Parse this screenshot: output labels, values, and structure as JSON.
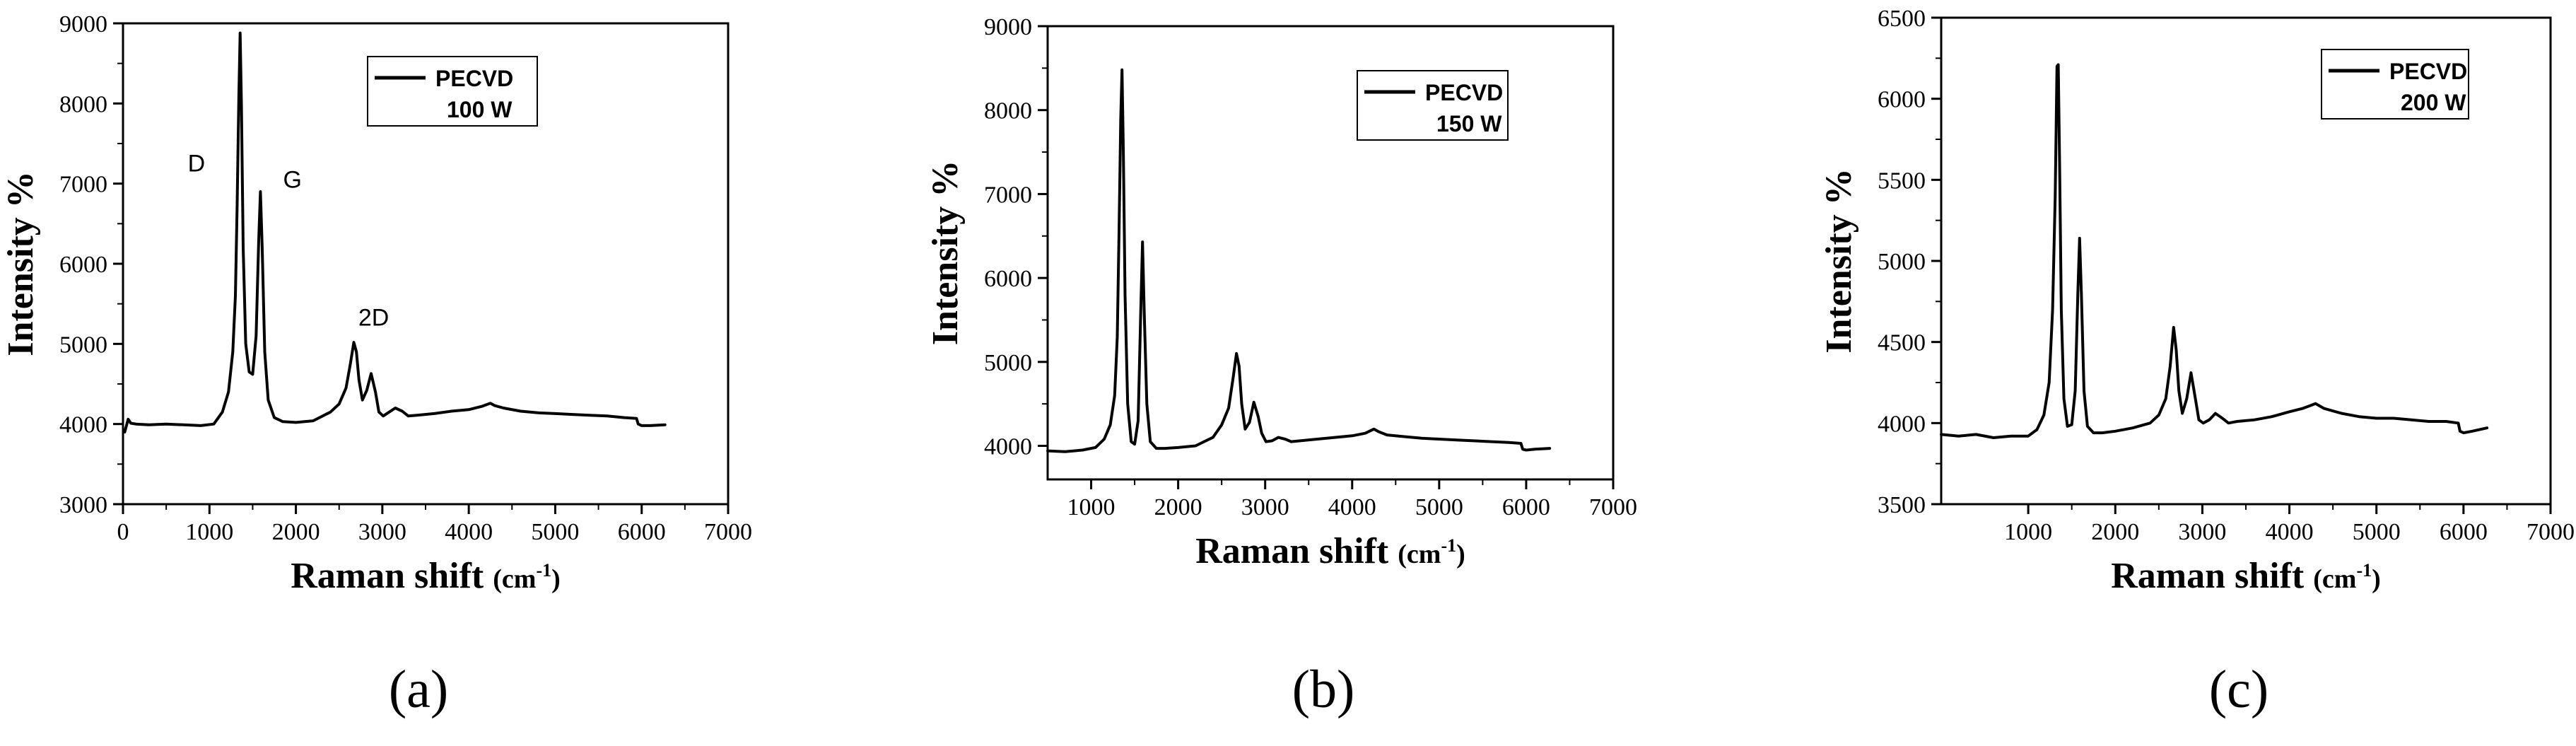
{
  "chart_data": [
    {
      "type": "line",
      "panel_label": "(a)",
      "xlabel": "Raman shift",
      "xlabel_unit_base": "(cm",
      "xlabel_unit_sup": "-1",
      "xlabel_unit_close": ")",
      "ylabel": "Intensity %",
      "xlim": [
        0,
        7000
      ],
      "ylim": [
        3000,
        9000
      ],
      "xticks": [
        0,
        1000,
        2000,
        3000,
        4000,
        5000,
        6000,
        7000
      ],
      "yticks": [
        3000,
        4000,
        5000,
        6000,
        7000,
        8000,
        9000
      ],
      "legend": {
        "name": "PECVD",
        "power": "100 W",
        "position": "top-right"
      },
      "annotations": [
        {
          "text": "D",
          "x": 850,
          "y": 7150
        },
        {
          "text": "G",
          "x": 1960,
          "y": 6950
        },
        {
          "text": "2D",
          "x": 2900,
          "y": 5230
        }
      ],
      "series": [
        {
          "name": "PECVD 100 W",
          "color": "#000000",
          "x": [
            20,
            60,
            90,
            150,
            300,
            500,
            700,
            900,
            1050,
            1150,
            1220,
            1270,
            1300,
            1320,
            1340,
            1355,
            1370,
            1390,
            1420,
            1460,
            1500,
            1540,
            1570,
            1590,
            1610,
            1640,
            1680,
            1750,
            1850,
            2000,
            2200,
            2400,
            2500,
            2580,
            2630,
            2670,
            2700,
            2730,
            2770,
            2820,
            2870,
            2920,
            2960,
            3010,
            3080,
            3150,
            3230,
            3300,
            3400,
            3600,
            3800,
            4000,
            4150,
            4250,
            4300,
            4400,
            4600,
            4800,
            5000,
            5200,
            5400,
            5600,
            5800,
            5940,
            5960,
            6000,
            6100,
            6270
          ],
          "y": [
            3900,
            4060,
            4010,
            4000,
            3990,
            4000,
            3990,
            3980,
            4000,
            4150,
            4400,
            4900,
            5600,
            6700,
            8100,
            8880,
            8000,
            6200,
            5000,
            4650,
            4620,
            5100,
            6300,
            6900,
            6200,
            4900,
            4300,
            4080,
            4030,
            4020,
            4040,
            4150,
            4250,
            4450,
            4750,
            5020,
            4900,
            4550,
            4300,
            4420,
            4630,
            4400,
            4150,
            4100,
            4150,
            4200,
            4160,
            4100,
            4110,
            4130,
            4160,
            4180,
            4220,
            4260,
            4230,
            4200,
            4160,
            4140,
            4130,
            4120,
            4110,
            4100,
            4080,
            4070,
            4000,
            3980,
            3980,
            3990
          ]
        }
      ]
    },
    {
      "type": "line",
      "panel_label": "(b)",
      "xlabel": "Raman shift",
      "xlabel_unit_base": "(cm",
      "xlabel_unit_sup": "-1",
      "xlabel_unit_close": ")",
      "ylabel": "Intensity %",
      "xlim": [
        500,
        7000
      ],
      "ylim": [
        3600,
        9000
      ],
      "xticks": [
        1000,
        2000,
        3000,
        4000,
        5000,
        6000,
        7000
      ],
      "yticks": [
        4000,
        5000,
        6000,
        7000,
        8000,
        9000
      ],
      "legend": {
        "name": "PECVD",
        "power": "150 W",
        "position": "top-right"
      },
      "annotations": [],
      "series": [
        {
          "name": "PECVD 150 W",
          "color": "#000000",
          "x": [
            500,
            700,
            900,
            1050,
            1150,
            1220,
            1270,
            1300,
            1320,
            1340,
            1355,
            1370,
            1390,
            1420,
            1460,
            1500,
            1540,
            1570,
            1590,
            1610,
            1640,
            1680,
            1750,
            1850,
            2000,
            2200,
            2400,
            2500,
            2580,
            2630,
            2670,
            2700,
            2730,
            2770,
            2820,
            2870,
            2920,
            2960,
            3010,
            3080,
            3150,
            3230,
            3300,
            3400,
            3600,
            3800,
            4000,
            4150,
            4250,
            4300,
            4400,
            4600,
            4800,
            5000,
            5200,
            5400,
            5600,
            5800,
            5940,
            5960,
            6000,
            6100,
            6270
          ],
          "y": [
            3940,
            3930,
            3950,
            3980,
            4080,
            4250,
            4600,
            5300,
            6500,
            7900,
            8480,
            7500,
            5800,
            4500,
            4050,
            4020,
            4300,
            5600,
            6430,
            5600,
            4500,
            4050,
            3970,
            3970,
            3980,
            4000,
            4100,
            4250,
            4450,
            4800,
            5100,
            4950,
            4500,
            4200,
            4280,
            4520,
            4350,
            4150,
            4050,
            4060,
            4100,
            4080,
            4050,
            4060,
            4080,
            4100,
            4120,
            4150,
            4200,
            4170,
            4130,
            4110,
            4090,
            4080,
            4070,
            4060,
            4050,
            4040,
            4030,
            3960,
            3950,
            3960,
            3970
          ]
        }
      ]
    },
    {
      "type": "line",
      "panel_label": "(c)",
      "xlabel": "Raman shift",
      "xlabel_unit_base": "(cm",
      "xlabel_unit_sup": "-1",
      "xlabel_unit_close": ")",
      "ylabel": "Intensity %",
      "xlim": [
        0,
        7000
      ],
      "ylim": [
        3500,
        6500
      ],
      "xticks": [
        1000,
        2000,
        3000,
        4000,
        5000,
        6000,
        7000
      ],
      "yticks": [
        3500,
        4000,
        4500,
        5000,
        5500,
        6000,
        6500
      ],
      "legend": {
        "name": "PECVD",
        "power": "200 W",
        "position": "top-right"
      },
      "annotations": [],
      "series": [
        {
          "name": "PECVD 200 W",
          "color": "#000000",
          "x": [
            0,
            200,
            400,
            600,
            800,
            1000,
            1100,
            1180,
            1240,
            1280,
            1310,
            1330,
            1345,
            1360,
            1380,
            1410,
            1450,
            1500,
            1540,
            1570,
            1590,
            1610,
            1640,
            1680,
            1750,
            1850,
            2000,
            2200,
            2400,
            2500,
            2580,
            2630,
            2670,
            2700,
            2730,
            2770,
            2820,
            2870,
            2920,
            2960,
            3010,
            3080,
            3150,
            3230,
            3300,
            3400,
            3600,
            3800,
            4000,
            4150,
            4250,
            4300,
            4400,
            4600,
            4800,
            5000,
            5200,
            5400,
            5600,
            5800,
            5940,
            5960,
            6000,
            6100,
            6270
          ],
          "y": [
            3930,
            3920,
            3930,
            3910,
            3920,
            3920,
            3960,
            4050,
            4250,
            4700,
            5400,
            6200,
            6210,
            5600,
            4700,
            4150,
            3980,
            3990,
            4200,
            4800,
            5140,
            4800,
            4200,
            3980,
            3940,
            3940,
            3950,
            3970,
            4000,
            4050,
            4150,
            4350,
            4590,
            4450,
            4200,
            4060,
            4150,
            4310,
            4150,
            4020,
            4000,
            4020,
            4060,
            4030,
            4000,
            4010,
            4020,
            4040,
            4070,
            4090,
            4110,
            4120,
            4090,
            4060,
            4040,
            4030,
            4030,
            4020,
            4010,
            4010,
            4000,
            3950,
            3940,
            3950,
            3970
          ]
        }
      ]
    }
  ]
}
